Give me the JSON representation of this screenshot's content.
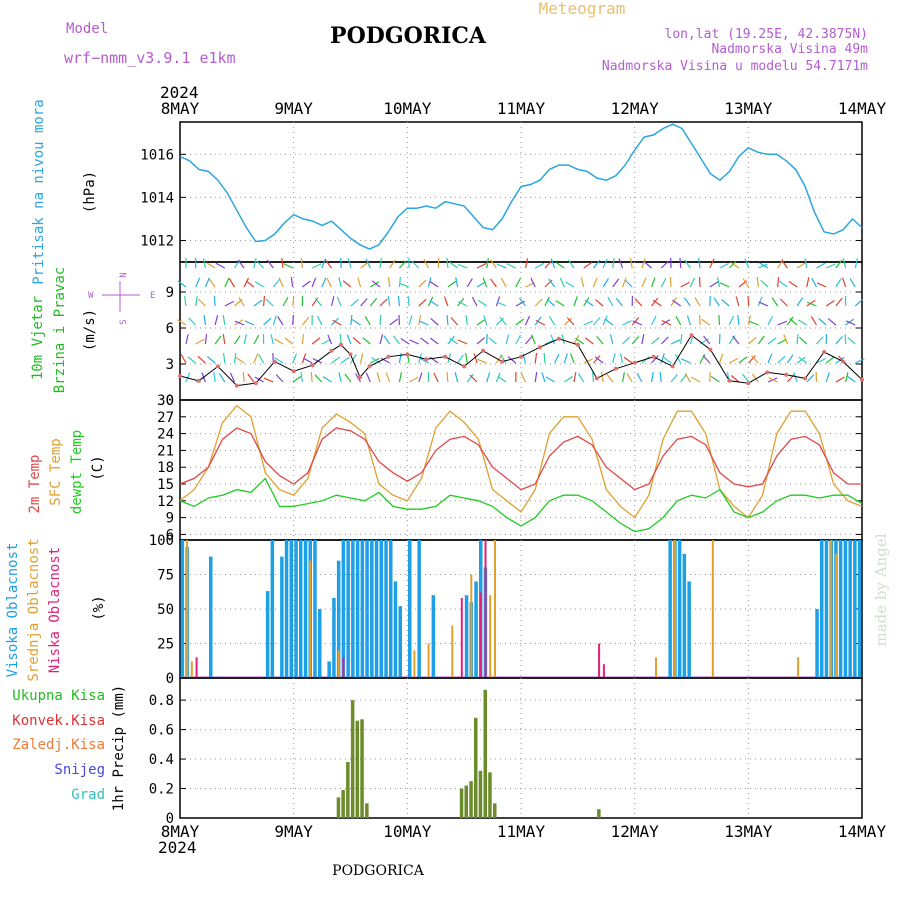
{
  "header": {
    "model_label": "Model",
    "model_name": "wrf−nmm_v3.9.1 e1km",
    "station_title": "PODGORICA",
    "meteogram_label": "Meteogram",
    "lonlat": "lon,lat (19.25E, 42.3875N)",
    "elevation": "Nadmorska Visina 49m",
    "model_elevation": "Nadmorska Visina u modelu 54.7171m",
    "footer_station": "PODGORICA",
    "credit": "made by Angel",
    "year_top": "2024",
    "year_bottom": "2024"
  },
  "colors": {
    "pressure": "#2aa6e0",
    "wind_label": "#22bb22",
    "temp2m": "#e04848",
    "sfc": "#e0a030",
    "dewpt": "#22cc22",
    "high_cloud": "#1ea0e6",
    "mid_cloud": "#e0a030",
    "low_cloud": "#e0207a",
    "total_precip": "#6a8c2a",
    "conv_precip": "#e03030",
    "frozen": "#f07a30",
    "snow": "#4848e0",
    "graupel": "#30c0c0"
  },
  "chart_data": [
    {
      "type": "line",
      "panel": "pressure",
      "ylabel_lines": [
        "Pritisak na nivou mora",
        "(hPa)"
      ],
      "x_ticks": [
        "8MAY",
        "9MAY",
        "10MAY",
        "11MAY",
        "12MAY",
        "13MAY",
        "14MAY"
      ],
      "y_ticks": [
        "1012",
        "1014",
        "1016"
      ],
      "ylim": [
        1011,
        1017.5
      ],
      "xlim": [
        0,
        144
      ],
      "grid": true,
      "series": [
        {
          "x": [
            0,
            2,
            4,
            6,
            8,
            10,
            12,
            14,
            16,
            18,
            20,
            22,
            24,
            26,
            28,
            30,
            32,
            34,
            36,
            38,
            40,
            42,
            44,
            46,
            48,
            50,
            52,
            54,
            56,
            58,
            60,
            62,
            64,
            66,
            68,
            70,
            72,
            74,
            76,
            78,
            80,
            82,
            84,
            86,
            88,
            90,
            92,
            94,
            96,
            98,
            100,
            102,
            104,
            106,
            108,
            110,
            112,
            114,
            116,
            118,
            120,
            122,
            124,
            126,
            128,
            130,
            132,
            134,
            136,
            138,
            140,
            142,
            144
          ],
          "y": [
            1015.9,
            1015.7,
            1015.3,
            1015.2,
            1014.8,
            1014.2,
            1013.4,
            1012.6,
            1011.95,
            1012.0,
            1012.3,
            1012.8,
            1013.2,
            1013.0,
            1012.9,
            1012.7,
            1012.9,
            1012.5,
            1012.1,
            1011.8,
            1011.6,
            1011.8,
            1012.4,
            1013.1,
            1013.5,
            1013.5,
            1013.6,
            1013.5,
            1013.8,
            1013.7,
            1013.6,
            1013.1,
            1012.6,
            1012.5,
            1013.0,
            1013.8,
            1014.5,
            1014.6,
            1014.8,
            1015.3,
            1015.5,
            1015.5,
            1015.3,
            1015.2,
            1014.9,
            1014.8,
            1015.0,
            1015.5,
            1016.2,
            1016.8,
            1016.9,
            1017.2,
            1017.4,
            1017.2,
            1016.5,
            1015.8,
            1015.1,
            1014.8,
            1015.2,
            1015.9,
            1016.3,
            1016.1,
            1016.0,
            1016.0,
            1015.7,
            1015.3,
            1014.5,
            1013.3,
            1012.4,
            1012.3,
            1012.5,
            1013.0,
            1012.6
          ]
        }
      ]
    },
    {
      "type": "line",
      "panel": "wind",
      "ylabel_lines": [
        "10m Vjetar",
        "Brzina i Pravac",
        "(m/s)"
      ],
      "compass": [
        "N",
        "W",
        "E",
        "S"
      ],
      "y_ticks": [
        "0",
        "3",
        "6",
        "9"
      ],
      "ylim": [
        0,
        11.5
      ],
      "xlim": [
        0,
        144
      ],
      "grid": true,
      "series": [
        {
          "name": "mean",
          "x": [
            0,
            4,
            8,
            12,
            16,
            20,
            24,
            28,
            32,
            34,
            36,
            38,
            40,
            44,
            48,
            52,
            56,
            60,
            64,
            68,
            72,
            76,
            80,
            84,
            88,
            92,
            96,
            100,
            104,
            108,
            112,
            116,
            120,
            124,
            128,
            132,
            136,
            140,
            144
          ],
          "y": [
            2.0,
            1.6,
            2.8,
            1.2,
            1.4,
            3.2,
            2.4,
            2.9,
            4.1,
            4.6,
            3.8,
            1.9,
            2.8,
            3.6,
            3.8,
            3.4,
            3.6,
            2.8,
            4.1,
            3.2,
            3.6,
            4.4,
            5.1,
            4.6,
            1.8,
            2.6,
            3.1,
            3.6,
            2.8,
            5.4,
            4.2,
            1.6,
            1.4,
            2.3,
            2.1,
            1.8,
            4.0,
            3.2,
            1.7
          ]
        }
      ]
    },
    {
      "type": "line",
      "panel": "temperature",
      "ylabel_lines": [
        "2m Temp",
        "SFC Temp",
        "dewpt Temp",
        "(C)"
      ],
      "y_ticks": [
        "6",
        "9",
        "12",
        "15",
        "18",
        "21",
        "24",
        "27",
        "30"
      ],
      "ylim": [
        5,
        30
      ],
      "xlim": [
        0,
        144
      ],
      "grid": true,
      "series": [
        {
          "name": "2m Temp",
          "x": [
            0,
            3,
            6,
            9,
            12,
            15,
            18,
            21,
            24,
            27,
            30,
            33,
            36,
            39,
            42,
            45,
            48,
            51,
            54,
            57,
            60,
            63,
            66,
            69,
            72,
            75,
            78,
            81,
            84,
            87,
            90,
            93,
            96,
            99,
            102,
            105,
            108,
            111,
            114,
            117,
            120,
            123,
            126,
            129,
            132,
            135,
            138,
            141,
            144
          ],
          "y": [
            15,
            16,
            18,
            23,
            25,
            24,
            19,
            16.5,
            15,
            17,
            23,
            25,
            24.5,
            23,
            19,
            17,
            15.5,
            17,
            21,
            23,
            23.5,
            22,
            18,
            16,
            14,
            15,
            20,
            22.5,
            23.5,
            22,
            18,
            16,
            14,
            15,
            20,
            23,
            23.5,
            22,
            17,
            15,
            14.5,
            15,
            20,
            23,
            23.5,
            22,
            17,
            15,
            15
          ]
        },
        {
          "name": "SFC Temp",
          "x": [
            0,
            3,
            6,
            9,
            12,
            15,
            18,
            21,
            24,
            27,
            30,
            33,
            36,
            39,
            42,
            45,
            48,
            51,
            54,
            57,
            60,
            63,
            66,
            69,
            72,
            75,
            78,
            81,
            84,
            87,
            90,
            93,
            96,
            99,
            102,
            105,
            108,
            111,
            114,
            117,
            120,
            123,
            126,
            129,
            132,
            135,
            138,
            141,
            144
          ],
          "y": [
            12,
            14,
            18,
            26,
            29,
            27,
            17,
            14,
            13,
            16,
            25,
            27.5,
            26,
            24,
            15,
            13,
            12,
            16,
            25,
            28,
            26,
            23,
            14,
            12,
            10,
            14,
            24,
            27,
            27,
            23,
            14,
            11,
            9,
            13,
            23,
            28,
            28,
            24,
            14,
            11,
            9,
            13,
            24,
            28,
            28,
            24,
            15,
            12,
            11
          ]
        },
        {
          "name": "dewpt Temp",
          "x": [
            0,
            3,
            6,
            9,
            12,
            15,
            18,
            21,
            24,
            27,
            30,
            33,
            36,
            39,
            42,
            45,
            48,
            51,
            54,
            57,
            60,
            63,
            66,
            69,
            72,
            75,
            78,
            81,
            84,
            87,
            90,
            93,
            96,
            99,
            102,
            105,
            108,
            111,
            114,
            117,
            120,
            123,
            126,
            129,
            132,
            135,
            138,
            141,
            144
          ],
          "y": [
            12,
            11,
            12.5,
            13,
            14,
            13.5,
            16,
            11,
            11,
            11.5,
            12,
            13,
            12.5,
            12,
            13.5,
            11,
            10.5,
            10.5,
            11,
            13,
            12.5,
            12,
            11,
            9,
            7.5,
            9,
            12,
            13,
            13,
            12,
            10,
            8,
            6.5,
            7,
            9,
            12,
            13,
            12.5,
            14,
            10,
            9,
            10,
            12,
            13,
            13,
            12.5,
            13,
            13,
            11.5
          ]
        }
      ]
    },
    {
      "type": "bar",
      "panel": "clouds",
      "ylabel_lines": [
        "Visoka Oblacnost",
        "Srednja Oblacnost",
        "Niska Oblacnost",
        "(%)"
      ],
      "y_ticks": [
        "0",
        "25",
        "50",
        "75",
        "100"
      ],
      "ylim": [
        0,
        100
      ],
      "xlim": [
        0,
        144
      ],
      "grid": true,
      "series": [
        {
          "name": "Visoka Oblacnost",
          "x": [
            0,
            1,
            6,
            18,
            19,
            21,
            22,
            23,
            24,
            25,
            26,
            27,
            28,
            29,
            31,
            32,
            33,
            34,
            35,
            36,
            37,
            38,
            39,
            40,
            41,
            42,
            43,
            44,
            45,
            46,
            48,
            50,
            53,
            60,
            61,
            62,
            63,
            64,
            103,
            104,
            105,
            106,
            107,
            134,
            135,
            136,
            137,
            138,
            139,
            140,
            141,
            142,
            143
          ],
          "y": [
            100,
            95,
            88,
            63,
            100,
            88,
            100,
            100,
            100,
            100,
            100,
            100,
            100,
            50,
            12,
            58,
            85,
            100,
            100,
            100,
            100,
            100,
            100,
            100,
            100,
            100,
            100,
            100,
            70,
            52,
            100,
            100,
            60,
            60,
            55,
            70,
            100,
            80,
            100,
            100,
            100,
            90,
            70,
            50,
            100,
            100,
            100,
            100,
            100,
            100,
            100,
            100,
            100
          ]
        },
        {
          "name": "Srednja Oblacnost",
          "x": [
            1,
            2,
            27,
            33,
            49,
            52,
            57,
            61,
            65,
            66,
            100,
            104,
            112,
            130,
            137,
            138
          ],
          "y": [
            100,
            12,
            85,
            20,
            20,
            25,
            38,
            75,
            60,
            100,
            15,
            100,
            100,
            15,
            100,
            90
          ]
        },
        {
          "name": "Niska Oblacnost",
          "x": [
            3,
            34,
            59,
            63,
            64,
            88,
            89
          ],
          "y": [
            15,
            15,
            58,
            62,
            100,
            25,
            10
          ]
        }
      ]
    },
    {
      "type": "bar",
      "panel": "precip",
      "ylabel_lines": [
        "1hr Precip (mm)"
      ],
      "legend": [
        "Ukupna Kisa",
        "Konvek.Kisa",
        "Zaledj.Kisa",
        "Snijeg",
        "Grad"
      ],
      "y_ticks": [
        "0",
        "0.2",
        "0.4",
        "0.6",
        "0.8"
      ],
      "ylim": [
        0,
        0.95
      ],
      "xlim": [
        0,
        144
      ],
      "grid": true,
      "x_ticks": [
        "8MAY",
        "9MAY",
        "10MAY",
        "11MAY",
        "12MAY",
        "13MAY",
        "14MAY"
      ],
      "series": [
        {
          "name": "Ukupna Kisa",
          "x": [
            33.5,
            34.5,
            35.5,
            36.5,
            37.5,
            38.5,
            39.5,
            59.5,
            60.5,
            61.5,
            62.5,
            63.5,
            64.5,
            65.5,
            66.5,
            88.5
          ],
          "y": [
            0.14,
            0.19,
            0.38,
            0.8,
            0.66,
            0.67,
            0.1,
            0.2,
            0.22,
            0.25,
            0.68,
            0.32,
            0.87,
            0.31,
            0.1,
            0.06
          ]
        }
      ]
    }
  ]
}
